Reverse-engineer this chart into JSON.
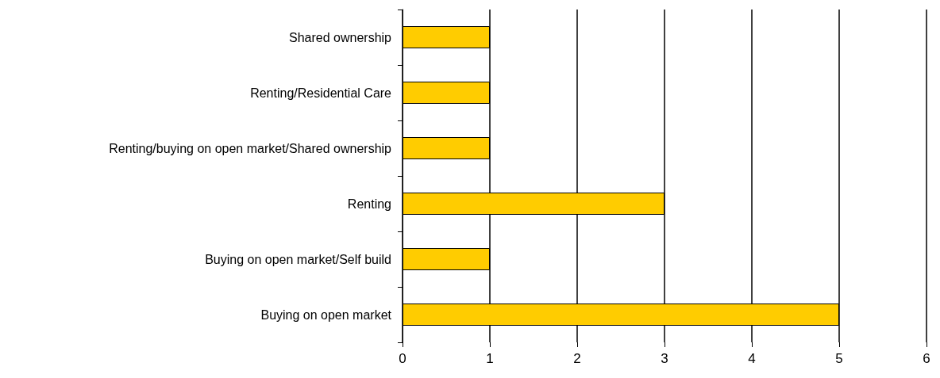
{
  "chart_data": {
    "type": "bar",
    "orientation": "horizontal",
    "categories": [
      "Shared ownership",
      "Renting/Residential Care",
      "Renting/buying on open market/Shared ownership",
      "Renting",
      "Buying on open market/Self build",
      "Buying on open market"
    ],
    "values": [
      1,
      1,
      1,
      3,
      1,
      5
    ],
    "color": "#ffcc00",
    "xlim": [
      0,
      6
    ],
    "xticks": [
      0,
      1,
      2,
      3,
      4,
      5,
      6
    ],
    "grid": "x"
  }
}
